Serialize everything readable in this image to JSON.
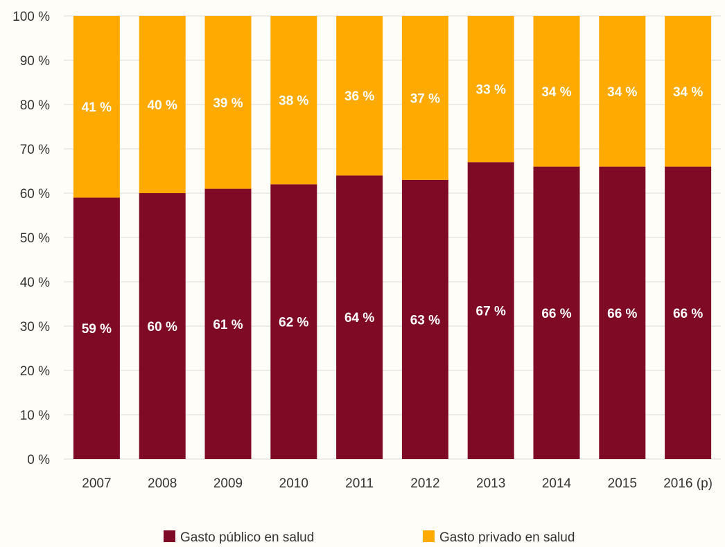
{
  "chart_data": {
    "type": "bar",
    "stacked": true,
    "categories": [
      "2007",
      "2008",
      "2009",
      "2010",
      "2011",
      "2012",
      "2013",
      "2014",
      "2015",
      "2016 (p)"
    ],
    "series": [
      {
        "name": "Gasto público en salud",
        "color": "#7f0a25",
        "values": [
          59,
          60,
          61,
          62,
          64,
          63,
          67,
          66,
          66,
          66
        ],
        "labels": [
          "59 %",
          "60 %",
          "61 %",
          "62 %",
          "64 %",
          "63 %",
          "67 %",
          "66 %",
          "66 %",
          "66 %"
        ]
      },
      {
        "name": "Gasto privado en salud",
        "color": "#ffaa00",
        "values": [
          41,
          40,
          39,
          38,
          36,
          37,
          33,
          34,
          34,
          34
        ],
        "labels": [
          "41 %",
          "40 %",
          "39 %",
          "38 %",
          "36 %",
          "37 %",
          "33 %",
          "34 %",
          "34 %",
          "34 %"
        ]
      }
    ],
    "ylim": [
      0,
      100
    ],
    "yticks": [
      "0 %",
      "10 %",
      "20 %",
      "30 %",
      "40 %",
      "50 %",
      "60 %",
      "70 %",
      "80 %",
      "90 %",
      "100 %"
    ],
    "grid": true,
    "legend_position": "bottom",
    "title": "",
    "xlabel": "",
    "ylabel": ""
  }
}
